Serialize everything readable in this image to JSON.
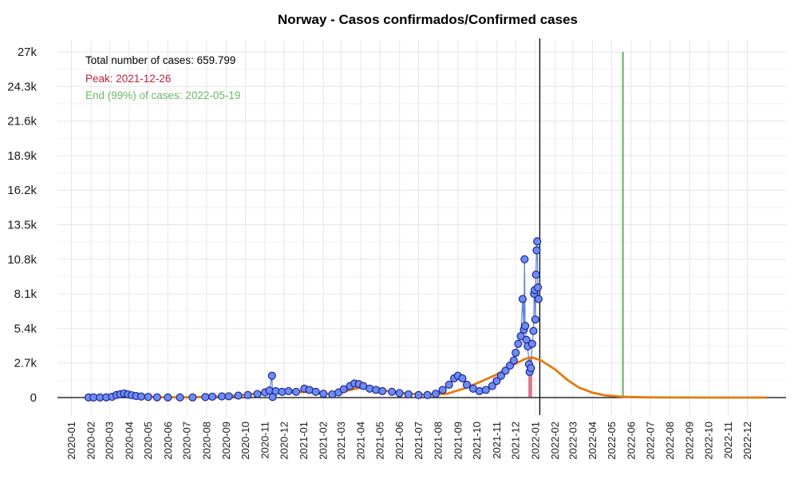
{
  "chart_data": {
    "type": "line",
    "title": "Norway - Casos confirmados/Confirmed cases",
    "xlabel": "",
    "ylabel": "",
    "ylim": [
      0,
      27000
    ],
    "y_ticks": [
      0,
      2700,
      5400,
      8100,
      10800,
      13500,
      16200,
      18900,
      21600,
      24300,
      27000
    ],
    "y_tick_labels": [
      "0",
      "2.7k",
      "5.4k",
      "8.1k",
      "10.8k",
      "13.5k",
      "16.2k",
      "18.9k",
      "21.6k",
      "24.3k",
      "27k"
    ],
    "x_ticks": [
      "2020-01",
      "2020-02",
      "2020-03",
      "2020-04",
      "2020-05",
      "2020-06",
      "2020-07",
      "2020-08",
      "2020-09",
      "2020-10",
      "2020-11",
      "2020-12",
      "2021-01",
      "2021-02",
      "2021-03",
      "2021-04",
      "2021-05",
      "2021-06",
      "2021-07",
      "2021-08",
      "2021-09",
      "2021-10",
      "2021-11",
      "2021-12",
      "2022-01",
      "2022-02",
      "2022-03",
      "2022-04",
      "2022-05",
      "2022-06",
      "2022-07",
      "2022-08",
      "2022-09",
      "2022-10",
      "2022-11",
      "2022-12"
    ],
    "xlim": [
      "2019-12-10",
      "2023-01-31"
    ],
    "grid": true,
    "annotations": {
      "total": "Total number of cases: 659.799",
      "peak": "Peak: 2021-12-26",
      "end": "End (99%) of cases: 2022-05-19"
    },
    "colors": {
      "observed_points_fill": "#6b8cf0",
      "observed_points_stroke": "#1a1a8c",
      "observed_line": "#5b7fe0",
      "fit_curve": "#e07b10",
      "peak_band": "#c0213a",
      "end_line": "#6cb86c",
      "today_line": "#000000",
      "total_text": "#000000",
      "peak_text": "#c0213a",
      "end_text": "#6cb86c"
    },
    "series": [
      {
        "kind": "observed",
        "points": [
          [
            "2020-01-28",
            10
          ],
          [
            "2020-02-05",
            10
          ],
          [
            "2020-02-15",
            10
          ],
          [
            "2020-02-25",
            20
          ],
          [
            "2020-03-05",
            60
          ],
          [
            "2020-03-12",
            200
          ],
          [
            "2020-03-18",
            260
          ],
          [
            "2020-03-24",
            320
          ],
          [
            "2020-03-30",
            250
          ],
          [
            "2020-04-05",
            180
          ],
          [
            "2020-04-12",
            120
          ],
          [
            "2020-04-20",
            80
          ],
          [
            "2020-05-01",
            50
          ],
          [
            "2020-05-15",
            20
          ],
          [
            "2020-06-01",
            10
          ],
          [
            "2020-06-20",
            10
          ],
          [
            "2020-07-10",
            15
          ],
          [
            "2020-07-30",
            40
          ],
          [
            "2020-08-10",
            70
          ],
          [
            "2020-08-25",
            90
          ],
          [
            "2020-09-05",
            100
          ],
          [
            "2020-09-20",
            150
          ],
          [
            "2020-10-05",
            200
          ],
          [
            "2020-10-20",
            280
          ],
          [
            "2020-11-01",
            400
          ],
          [
            "2020-11-08",
            550
          ],
          [
            "2020-11-12",
            1700
          ],
          [
            "2020-11-13",
            50
          ],
          [
            "2020-11-18",
            500
          ],
          [
            "2020-11-28",
            450
          ],
          [
            "2020-12-08",
            500
          ],
          [
            "2020-12-20",
            450
          ],
          [
            "2021-01-02",
            700
          ],
          [
            "2021-01-10",
            600
          ],
          [
            "2021-01-20",
            450
          ],
          [
            "2021-02-01",
            300
          ],
          [
            "2021-02-15",
            250
          ],
          [
            "2021-02-25",
            400
          ],
          [
            "2021-03-05",
            650
          ],
          [
            "2021-03-15",
            900
          ],
          [
            "2021-03-22",
            1100
          ],
          [
            "2021-03-29",
            1050
          ],
          [
            "2021-04-05",
            900
          ],
          [
            "2021-04-15",
            700
          ],
          [
            "2021-04-25",
            600
          ],
          [
            "2021-05-05",
            500
          ],
          [
            "2021-05-20",
            450
          ],
          [
            "2021-06-01",
            350
          ],
          [
            "2021-06-15",
            250
          ],
          [
            "2021-07-01",
            200
          ],
          [
            "2021-07-15",
            200
          ],
          [
            "2021-07-28",
            300
          ],
          [
            "2021-08-08",
            600
          ],
          [
            "2021-08-18",
            1000
          ],
          [
            "2021-08-26",
            1500
          ],
          [
            "2021-09-01",
            1700
          ],
          [
            "2021-09-08",
            1500
          ],
          [
            "2021-09-15",
            1000
          ],
          [
            "2021-09-25",
            700
          ],
          [
            "2021-10-05",
            500
          ],
          [
            "2021-10-15",
            600
          ],
          [
            "2021-10-25",
            900
          ],
          [
            "2021-11-01",
            1300
          ],
          [
            "2021-11-08",
            1700
          ],
          [
            "2021-11-15",
            2100
          ],
          [
            "2021-11-22",
            2500
          ],
          [
            "2021-11-28",
            2900
          ],
          [
            "2021-12-01",
            3500
          ],
          [
            "2021-12-05",
            4200
          ],
          [
            "2021-12-09",
            4800
          ],
          [
            "2021-12-12",
            7700
          ],
          [
            "2021-12-14",
            5300
          ],
          [
            "2021-12-15",
            10800
          ],
          [
            "2021-12-16",
            5600
          ],
          [
            "2021-12-18",
            4500
          ],
          [
            "2021-12-20",
            4000
          ],
          [
            "2021-12-22",
            2600
          ],
          [
            "2021-12-23",
            2000
          ],
          [
            "2021-12-25",
            2300
          ],
          [
            "2021-12-27",
            4200
          ],
          [
            "2021-12-29",
            5200
          ],
          [
            "2021-12-30",
            8100
          ],
          [
            "2021-12-31",
            8400
          ],
          [
            "2022-01-01",
            6100
          ],
          [
            "2022-01-02",
            9600
          ],
          [
            "2022-01-03",
            11500
          ],
          [
            "2022-01-04",
            12200
          ],
          [
            "2022-01-05",
            8600
          ],
          [
            "2022-01-06",
            7700
          ]
        ]
      },
      {
        "kind": "fit",
        "points": [
          [
            "2020-01-28",
            0
          ],
          [
            "2020-03-01",
            50
          ],
          [
            "2020-03-25",
            300
          ],
          [
            "2020-04-15",
            150
          ],
          [
            "2020-05-15",
            30
          ],
          [
            "2020-07-01",
            20
          ],
          [
            "2020-08-01",
            60
          ],
          [
            "2020-09-01",
            120
          ],
          [
            "2020-10-01",
            220
          ],
          [
            "2020-10-25",
            350
          ],
          [
            "2020-11-15",
            400
          ],
          [
            "2020-12-15",
            420
          ],
          [
            "2021-01-10",
            450
          ],
          [
            "2021-02-01",
            300
          ],
          [
            "2021-02-20",
            250
          ],
          [
            "2021-03-15",
            600
          ],
          [
            "2021-04-01",
            780
          ],
          [
            "2021-04-20",
            700
          ],
          [
            "2021-05-15",
            500
          ],
          [
            "2021-06-15",
            300
          ],
          [
            "2021-07-15",
            220
          ],
          [
            "2021-08-15",
            300
          ],
          [
            "2021-09-10",
            700
          ],
          [
            "2021-10-05",
            1200
          ],
          [
            "2021-11-01",
            1800
          ],
          [
            "2021-11-25",
            2500
          ],
          [
            "2021-12-15",
            3000
          ],
          [
            "2021-12-26",
            3150
          ],
          [
            "2022-01-10",
            2900
          ],
          [
            "2022-02-01",
            2200
          ],
          [
            "2022-02-20",
            1400
          ],
          [
            "2022-03-10",
            800
          ],
          [
            "2022-03-31",
            400
          ],
          [
            "2022-04-20",
            180
          ],
          [
            "2022-05-19",
            60
          ],
          [
            "2022-06-20",
            20
          ],
          [
            "2022-08-01",
            5
          ],
          [
            "2022-10-01",
            0
          ],
          [
            "2023-01-01",
            0
          ]
        ]
      }
    ],
    "peak_band": [
      "2021-12-21",
      "2021-12-27"
    ],
    "today_line": "2022-01-08",
    "end_line": "2022-05-19"
  }
}
